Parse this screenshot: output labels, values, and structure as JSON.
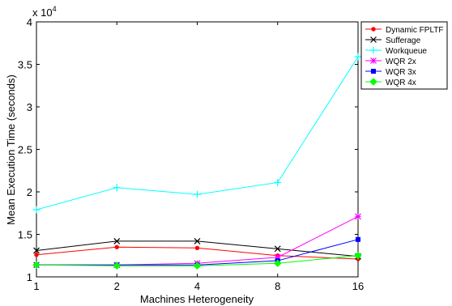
{
  "chart_data": {
    "type": "line",
    "title": "",
    "xlabel": "Machines Heterogeneity",
    "ylabel": "Mean Execution Time (seconds)",
    "y_exponent_label": "x 10",
    "y_exponent_power": "4",
    "categories": [
      "1",
      "2",
      "4",
      "8",
      "16"
    ],
    "ylim": [
      1,
      4
    ],
    "yticks": [
      1,
      1.5,
      2,
      2.5,
      3,
      3.5,
      4
    ],
    "ytick_labels": [
      "1",
      "1.5",
      "2",
      "2.5",
      "3",
      "3.5",
      "4"
    ],
    "y_multiplier": 10000,
    "grid": false,
    "legend_position": "top-right",
    "series": [
      {
        "name": "Dynamic FPLTF",
        "color": "#ff0000",
        "marker": "dot",
        "values": [
          1.26,
          1.35,
          1.34,
          1.25,
          1.21
        ]
      },
      {
        "name": "Sufferage",
        "color": "#000000",
        "marker": "x",
        "values": [
          1.31,
          1.42,
          1.42,
          1.33,
          1.24
        ]
      },
      {
        "name": "Workqueue",
        "color": "#00ffff",
        "marker": "plus",
        "values": [
          1.79,
          2.05,
          1.97,
          2.11,
          3.59
        ]
      },
      {
        "name": "WQR 2x",
        "color": "#ff00ff",
        "marker": "star",
        "values": [
          1.14,
          1.14,
          1.16,
          1.23,
          1.71
        ]
      },
      {
        "name": "WQR 3x",
        "color": "#0000ff",
        "marker": "square",
        "values": [
          1.14,
          1.14,
          1.14,
          1.19,
          1.44
        ]
      },
      {
        "name": "WQR 4x",
        "color": "#00ff00",
        "marker": "diamond",
        "values": [
          1.14,
          1.13,
          1.13,
          1.16,
          1.25
        ]
      }
    ]
  }
}
